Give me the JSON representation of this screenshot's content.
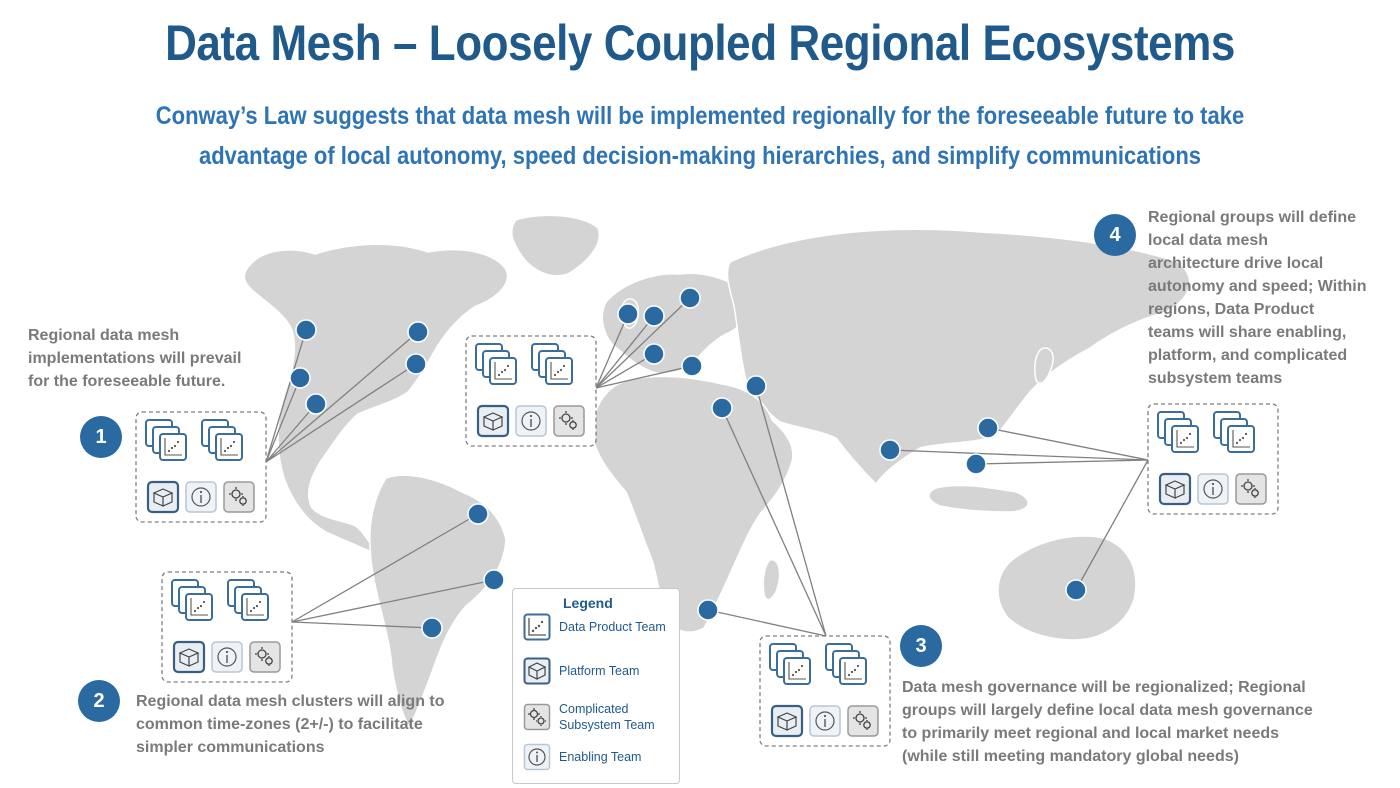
{
  "title": "Data Mesh – Loosely Coupled Regional Ecosystems",
  "subtitle": {
    "line1": "Conway’s Law suggests that data mesh will be implemented regionally for the foreseeable future to take",
    "line2": "advantage of local autonomy, speed decision-making hierarchies, and simplify communications"
  },
  "callouts": [
    {
      "number": "1",
      "lines": [
        "Regional data mesh",
        "implementations will prevail",
        "for the foreseeable future."
      ]
    },
    {
      "number": "2",
      "lines": [
        "Regional data mesh clusters will align to",
        "common time-zones (2+/-) to facilitate",
        "simpler communications"
      ]
    },
    {
      "number": "3",
      "lines": [
        "Data mesh governance will be regionalized; Regional",
        "groups will largely define local data mesh governance",
        "to primarily meet regional and local market needs",
        "(while still meeting mandatory global needs)"
      ]
    },
    {
      "number": "4",
      "lines": [
        "Regional groups will define",
        "local data mesh",
        "architecture drive local",
        "autonomy and speed; Within",
        "regions, Data Product",
        "teams will share enabling,",
        "platform, and complicated",
        "subsystem teams"
      ]
    }
  ],
  "legend": {
    "title": "Legend",
    "items": [
      {
        "icon": "data-product-icon",
        "label": "Data Product Team"
      },
      {
        "icon": "platform-icon",
        "label": "Platform Team"
      },
      {
        "icon": "complicated-subsystem-icon",
        "label": "Complicated Subsystem Team"
      },
      {
        "icon": "enabling-icon",
        "label": "Enabling Team"
      }
    ]
  },
  "colors": {
    "title": "#1f5a8b",
    "subtitle": "#2e74b5",
    "dot": "#2b6aa1",
    "land": "#d4d4d4",
    "note_text": "#7a7a7a",
    "connector": "#808080"
  }
}
